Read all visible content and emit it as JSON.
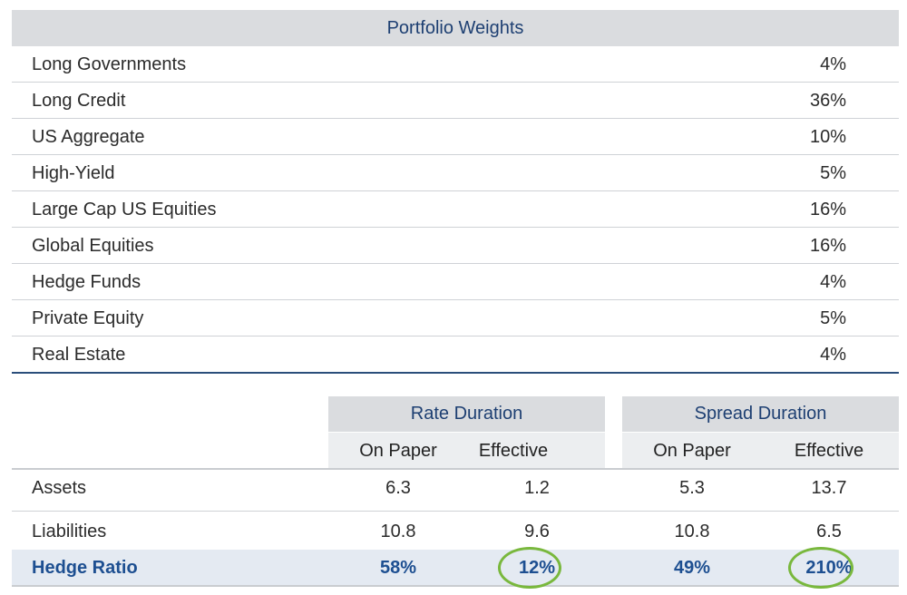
{
  "weights": {
    "title": "Portfolio Weights",
    "rows": [
      {
        "label": "Long Governments",
        "value": "4%"
      },
      {
        "label": "Long Credit",
        "value": "36%"
      },
      {
        "label": "US Aggregate",
        "value": "10%"
      },
      {
        "label": "High-Yield",
        "value": "5%"
      },
      {
        "label": "Large Cap US Equities",
        "value": "16%"
      },
      {
        "label": "Global Equities",
        "value": "16%"
      },
      {
        "label": "Hedge Funds",
        "value": "4%"
      },
      {
        "label": "Private Equity",
        "value": "5%"
      },
      {
        "label": "Real Estate",
        "value": "4%"
      }
    ]
  },
  "duration": {
    "groups": [
      "Rate Duration",
      "Spread Duration"
    ],
    "subheaders": [
      "On Paper",
      "Effective",
      "On Paper",
      "Effective"
    ],
    "rows": [
      {
        "label": "Assets",
        "values": [
          "6.3",
          "1.2",
          "5.3",
          "13.7"
        ]
      },
      {
        "label": "Liabilities",
        "values": [
          "10.8",
          "9.6",
          "10.8",
          "6.5"
        ]
      },
      {
        "label": "Hedge Ratio",
        "values": [
          "58%",
          "12%",
          "49%",
          "210%"
        ]
      }
    ],
    "highlight_color": "#79b83d"
  }
}
